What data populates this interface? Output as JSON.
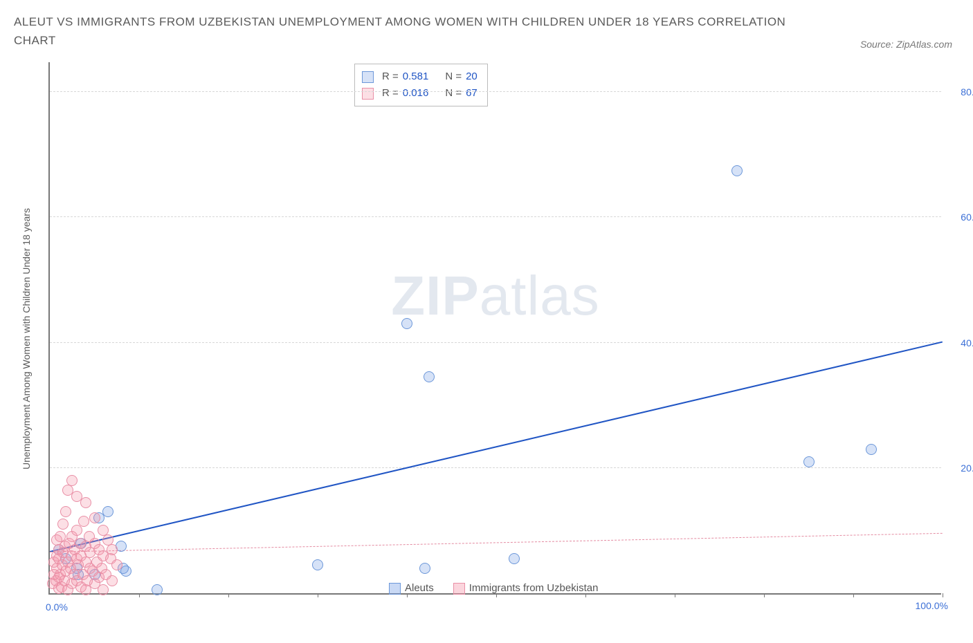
{
  "title": "ALEUT VS IMMIGRANTS FROM UZBEKISTAN UNEMPLOYMENT AMONG WOMEN WITH CHILDREN UNDER 18 YEARS CORRELATION CHART",
  "source": "Source: ZipAtlas.com",
  "ylabel": "Unemployment Among Women with Children Under 18 years",
  "watermark_a": "ZIP",
  "watermark_b": "atlas",
  "chart": {
    "type": "scatter",
    "xlim": [
      0,
      100
    ],
    "ylim": [
      0,
      85
    ],
    "ytick_step": 20,
    "yticks": [
      20,
      40,
      60,
      80
    ],
    "ytick_labels": [
      "20.0%",
      "40.0%",
      "60.0%",
      "80.0%"
    ],
    "xtick_positions": [
      10,
      20,
      30,
      40,
      50,
      60,
      70,
      80,
      90,
      100
    ],
    "x_start_label": "0.0%",
    "x_end_label": "100.0%",
    "grid_color": "#d7d7d7",
    "axis_color": "#777777",
    "background_color": "#ffffff",
    "series": [
      {
        "name": "Aleuts",
        "fill": "rgba(120,160,230,0.30)",
        "stroke": "#6c97d9",
        "marker_r": 8,
        "trend": {
          "color": "#2055c4",
          "width": 2,
          "dash": "solid",
          "x1": 0,
          "y1": 6.5,
          "x2": 100,
          "y2": 40
        },
        "R": "0.581",
        "N": "20",
        "points": [
          [
            1.0,
            7.0
          ],
          [
            1.8,
            5.5
          ],
          [
            3.0,
            4.0
          ],
          [
            3.2,
            3.0
          ],
          [
            3.5,
            8.0
          ],
          [
            5.0,
            3.0
          ],
          [
            5.5,
            12.0
          ],
          [
            6.5,
            13.0
          ],
          [
            8.0,
            7.5
          ],
          [
            8.2,
            4.0
          ],
          [
            8.5,
            3.5
          ],
          [
            12.0,
            0.5
          ],
          [
            30.0,
            4.5
          ],
          [
            40.0,
            43.0
          ],
          [
            42.0,
            4.0
          ],
          [
            42.5,
            34.5
          ],
          [
            52.0,
            5.5
          ],
          [
            77.0,
            67.5
          ],
          [
            85.0,
            21.0
          ],
          [
            92.0,
            23.0
          ]
        ]
      },
      {
        "name": "Immigrants from Uzbekistan",
        "fill": "rgba(244,150,170,0.30)",
        "stroke": "#e98fa6",
        "marker_r": 8,
        "trend": {
          "color": "#e48aa0",
          "width": 1,
          "dash": "5,5",
          "x1": 0,
          "y1": 6.5,
          "x2": 100,
          "y2": 9.5
        },
        "R": "0.016",
        "N": "67",
        "points": [
          [
            0.3,
            1.5
          ],
          [
            0.5,
            3.0
          ],
          [
            0.5,
            5.0
          ],
          [
            0.7,
            2.0
          ],
          [
            0.8,
            4.0
          ],
          [
            0.8,
            6.0
          ],
          [
            0.8,
            8.5
          ],
          [
            1.0,
            0.8
          ],
          [
            1.0,
            2.5
          ],
          [
            1.0,
            5.5
          ],
          [
            1.0,
            7.0
          ],
          [
            1.2,
            3.0
          ],
          [
            1.2,
            9.0
          ],
          [
            1.3,
            1.0
          ],
          [
            1.4,
            4.5
          ],
          [
            1.5,
            6.5
          ],
          [
            1.5,
            11.0
          ],
          [
            1.6,
            2.0
          ],
          [
            1.7,
            7.5
          ],
          [
            1.8,
            3.5
          ],
          [
            1.8,
            13.0
          ],
          [
            2.0,
            0.5
          ],
          [
            2.0,
            5.0
          ],
          [
            2.0,
            16.5
          ],
          [
            2.2,
            8.0
          ],
          [
            2.3,
            4.0
          ],
          [
            2.4,
            6.0
          ],
          [
            2.5,
            1.5
          ],
          [
            2.5,
            9.0
          ],
          [
            2.5,
            18.0
          ],
          [
            2.7,
            3.0
          ],
          [
            2.8,
            7.0
          ],
          [
            3.0,
            2.0
          ],
          [
            3.0,
            5.5
          ],
          [
            3.0,
            10.0
          ],
          [
            3.0,
            15.5
          ],
          [
            3.2,
            4.5
          ],
          [
            3.4,
            8.0
          ],
          [
            3.5,
            1.0
          ],
          [
            3.5,
            6.0
          ],
          [
            3.7,
            3.0
          ],
          [
            3.8,
            11.5
          ],
          [
            4.0,
            0.5
          ],
          [
            4.0,
            5.0
          ],
          [
            4.0,
            7.5
          ],
          [
            4.0,
            14.5
          ],
          [
            4.2,
            2.0
          ],
          [
            4.4,
            9.0
          ],
          [
            4.5,
            4.0
          ],
          [
            4.5,
            6.5
          ],
          [
            4.8,
            3.5
          ],
          [
            5.0,
            1.5
          ],
          [
            5.0,
            8.0
          ],
          [
            5.0,
            12.0
          ],
          [
            5.3,
            5.0
          ],
          [
            5.5,
            2.5
          ],
          [
            5.5,
            7.0
          ],
          [
            5.8,
            4.0
          ],
          [
            6.0,
            0.5
          ],
          [
            6.0,
            6.0
          ],
          [
            6.0,
            10.0
          ],
          [
            6.3,
            3.0
          ],
          [
            6.5,
            8.5
          ],
          [
            6.8,
            5.5
          ],
          [
            7.0,
            2.0
          ],
          [
            7.0,
            7.0
          ],
          [
            7.5,
            4.5
          ]
        ]
      }
    ],
    "bottom_legend": [
      {
        "label": "Aleuts",
        "fill": "rgba(120,160,230,0.40)",
        "stroke": "#6c97d9"
      },
      {
        "label": "Immigrants from Uzbekistan",
        "fill": "rgba(244,150,170,0.40)",
        "stroke": "#e98fa6"
      }
    ]
  }
}
